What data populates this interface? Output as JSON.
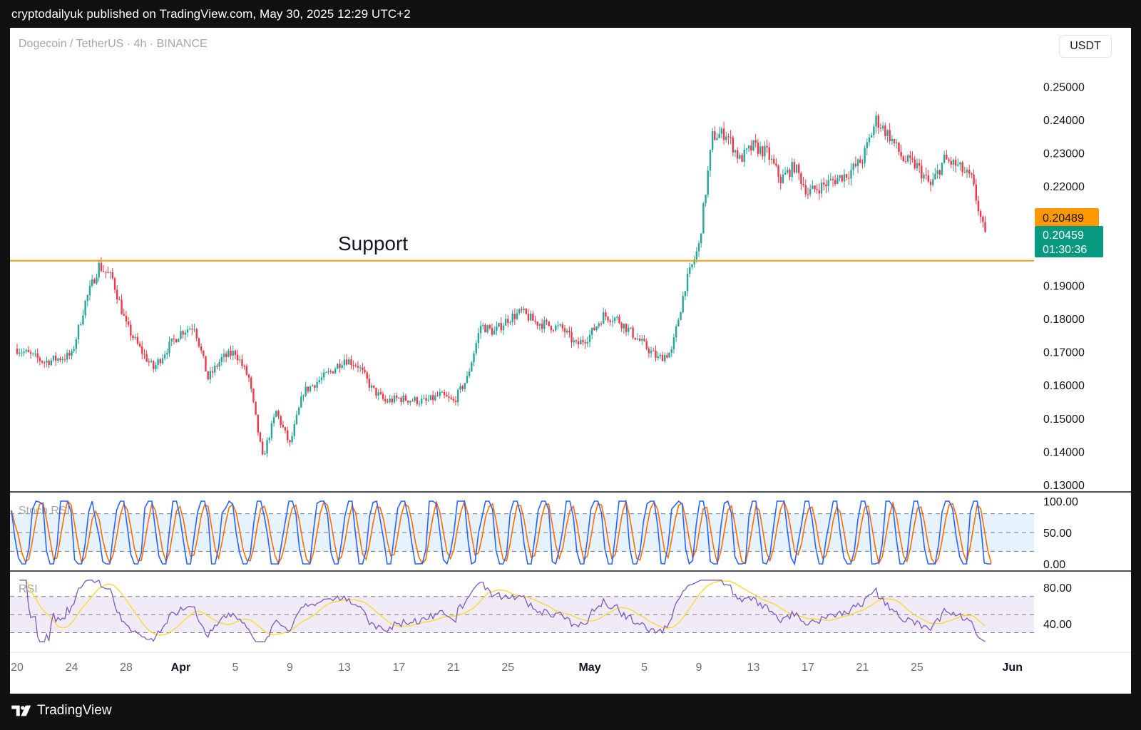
{
  "header": {
    "published": "cryptodailyuk published on TradingView.com, May 30, 2025 12:29 UTC+2"
  },
  "chart": {
    "symbol": "Dogecoin / TetherUS · 4h · BINANCE",
    "currency": "USDT",
    "annotation": "Support",
    "support_level": 0.1975,
    "price_label_orange": "0.20489",
    "price_label_last": "0.20459",
    "countdown": "01:30:36",
    "colors": {
      "up": "#26a69a",
      "down": "#f23645",
      "support": "#f59e0b",
      "last_price_bg": "#089981",
      "orange_label_bg": "#ff9800",
      "stoch_k": "#2962ff",
      "stoch_d": "#ff6d00",
      "rsi_line": "#7e57c2",
      "rsi_ma": "#fdd835"
    }
  },
  "indicators": {
    "stoch_label": "Stoch RSI",
    "rsi_label": "RSI"
  },
  "footer": {
    "brand": "TradingView",
    "logo_icon": "tradingview-logo-icon"
  },
  "chart_data": {
    "type": "candlestick",
    "title": "Dogecoin / TetherUS · 4h · BINANCE",
    "ylim": [
      0.125,
      0.265
    ],
    "y_ticks": [
      "0.25000",
      "0.24000",
      "0.23000",
      "0.22000",
      "0.19000",
      "0.18000",
      "0.17000",
      "0.16000",
      "0.15000",
      "0.14000",
      "0.13000"
    ],
    "x_ticks": [
      "20",
      "24",
      "28",
      "Apr",
      "5",
      "9",
      "13",
      "17",
      "21",
      "25",
      "May",
      "5",
      "9",
      "13",
      "17",
      "21",
      "25",
      "Jun"
    ],
    "price_keypoints": [
      {
        "date": "2025-03-20",
        "close": 0.171
      },
      {
        "date": "2025-03-22",
        "close": 0.167
      },
      {
        "date": "2025-03-24",
        "close": 0.169
      },
      {
        "date": "2025-03-25",
        "close": 0.185
      },
      {
        "date": "2025-03-26",
        "close": 0.196
      },
      {
        "date": "2025-03-27",
        "close": 0.192
      },
      {
        "date": "2025-03-28",
        "close": 0.178
      },
      {
        "date": "2025-03-29",
        "close": 0.171
      },
      {
        "date": "2025-03-30",
        "close": 0.165
      },
      {
        "date": "2025-03-31",
        "close": 0.171
      },
      {
        "date": "2025-04-01",
        "close": 0.176
      },
      {
        "date": "2025-04-02",
        "close": 0.178
      },
      {
        "date": "2025-04-03",
        "close": 0.162
      },
      {
        "date": "2025-04-04",
        "close": 0.168
      },
      {
        "date": "2025-04-05",
        "close": 0.17
      },
      {
        "date": "2025-04-06",
        "close": 0.162
      },
      {
        "date": "2025-04-07",
        "close": 0.138
      },
      {
        "date": "2025-04-08",
        "close": 0.152
      },
      {
        "date": "2025-04-09",
        "close": 0.142
      },
      {
        "date": "2025-04-10",
        "close": 0.158
      },
      {
        "date": "2025-04-11",
        "close": 0.161
      },
      {
        "date": "2025-04-12",
        "close": 0.164
      },
      {
        "date": "2025-04-13",
        "close": 0.168
      },
      {
        "date": "2025-04-14",
        "close": 0.166
      },
      {
        "date": "2025-04-15",
        "close": 0.159
      },
      {
        "date": "2025-04-16",
        "close": 0.155
      },
      {
        "date": "2025-04-17",
        "close": 0.156
      },
      {
        "date": "2025-04-19",
        "close": 0.155
      },
      {
        "date": "2025-04-20",
        "close": 0.157
      },
      {
        "date": "2025-04-21",
        "close": 0.155
      },
      {
        "date": "2025-04-22",
        "close": 0.162
      },
      {
        "date": "2025-04-23",
        "close": 0.178
      },
      {
        "date": "2025-04-24",
        "close": 0.176
      },
      {
        "date": "2025-04-25",
        "close": 0.18
      },
      {
        "date": "2025-04-26",
        "close": 0.182
      },
      {
        "date": "2025-04-27",
        "close": 0.179
      },
      {
        "date": "2025-04-28",
        "close": 0.178
      },
      {
        "date": "2025-04-29",
        "close": 0.177
      },
      {
        "date": "2025-04-30",
        "close": 0.172
      },
      {
        "date": "2025-05-01",
        "close": 0.175
      },
      {
        "date": "2025-05-02",
        "close": 0.181
      },
      {
        "date": "2025-05-03",
        "close": 0.18
      },
      {
        "date": "2025-05-04",
        "close": 0.176
      },
      {
        "date": "2025-05-05",
        "close": 0.172
      },
      {
        "date": "2025-05-06",
        "close": 0.168
      },
      {
        "date": "2025-05-07",
        "close": 0.17
      },
      {
        "date": "2025-05-08",
        "close": 0.19
      },
      {
        "date": "2025-05-09",
        "close": 0.202
      },
      {
        "date": "2025-05-10",
        "close": 0.235
      },
      {
        "date": "2025-05-11",
        "close": 0.236
      },
      {
        "date": "2025-05-12",
        "close": 0.228
      },
      {
        "date": "2025-05-13",
        "close": 0.232
      },
      {
        "date": "2025-05-14",
        "close": 0.23
      },
      {
        "date": "2025-05-15",
        "close": 0.222
      },
      {
        "date": "2025-05-16",
        "close": 0.226
      },
      {
        "date": "2025-05-17",
        "close": 0.218
      },
      {
        "date": "2025-05-18",
        "close": 0.22
      },
      {
        "date": "2025-05-19",
        "close": 0.222
      },
      {
        "date": "2025-05-20",
        "close": 0.224
      },
      {
        "date": "2025-05-21",
        "close": 0.228
      },
      {
        "date": "2025-05-22",
        "close": 0.24
      },
      {
        "date": "2025-05-23",
        "close": 0.235
      },
      {
        "date": "2025-05-24",
        "close": 0.228
      },
      {
        "date": "2025-05-25",
        "close": 0.226
      },
      {
        "date": "2025-05-26",
        "close": 0.22
      },
      {
        "date": "2025-05-27",
        "close": 0.228
      },
      {
        "date": "2025-05-28",
        "close": 0.226
      },
      {
        "date": "2025-05-29",
        "close": 0.222
      },
      {
        "date": "2025-05-30",
        "close": 0.2046
      }
    ],
    "stoch_rsi": {
      "ylim": [
        0,
        100
      ],
      "y_ticks": [
        "100.00",
        "50.00",
        "0.00"
      ],
      "bands": [
        80,
        50,
        20
      ]
    },
    "rsi": {
      "ylim": [
        20,
        90
      ],
      "y_ticks": [
        "80.00",
        "40.00"
      ],
      "bands": [
        70,
        50,
        30
      ]
    }
  }
}
